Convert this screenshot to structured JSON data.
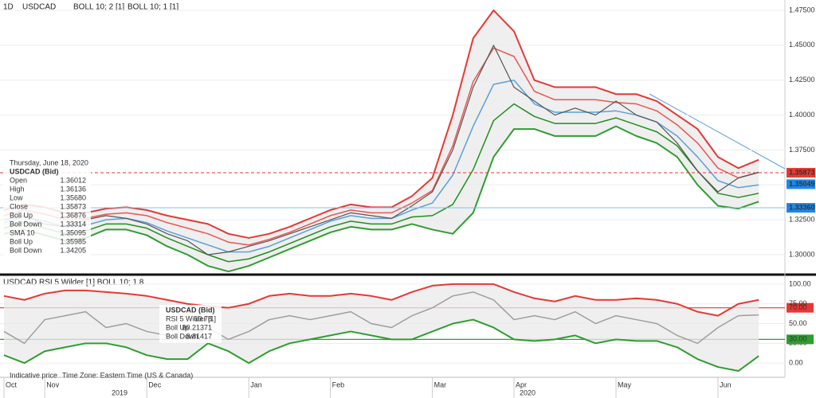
{
  "header": {
    "period": "1D",
    "symbol": "USDCAD",
    "indicators": [
      "BOLL 10; 2 [1]",
      "BOLL 10; 1 [1]"
    ]
  },
  "footer": {
    "note": "Indicative price",
    "timezone": "Time Zone: Eastern Time (US & Canada)",
    "years": [
      "2019",
      "2020"
    ]
  },
  "chart_data": [
    {
      "type": "line",
      "categories": [
        "Oct",
        null,
        "Nov",
        null,
        null,
        null,
        null,
        "Dec",
        null,
        null,
        null,
        null,
        "Jan",
        null,
        null,
        null,
        "Feb",
        null,
        null,
        null,
        null,
        "Mar",
        null,
        null,
        null,
        "Apr",
        null,
        null,
        null,
        null,
        "May",
        null,
        null,
        null,
        null,
        "Jun",
        null,
        null
      ],
      "ylim": [
        1.2886,
        1.4824
      ],
      "yticks": [
        {
          "value": 1.3,
          "label": "1.30000"
        },
        {
          "value": 1.325,
          "label": "1.32500"
        },
        {
          "value": 1.35,
          "label": "1.35000"
        },
        {
          "value": 1.375,
          "label": "1.37500"
        },
        {
          "value": 1.4,
          "label": "1.40000"
        },
        {
          "value": 1.425,
          "label": "1.42500"
        },
        {
          "value": 1.45,
          "label": "1.45000"
        },
        {
          "value": 1.475,
          "label": "1.47500"
        }
      ],
      "grid": true,
      "series": [
        {
          "color": "#e53935",
          "width": 2,
          "band": "up",
          "values": [
            1.332,
            1.336,
            1.334,
            1.33,
            1.33,
            1.333,
            1.334,
            1.332,
            1.328,
            1.325,
            1.322,
            1.315,
            1.312,
            1.315,
            1.32,
            1.326,
            1.332,
            1.336,
            1.334,
            1.334,
            1.342,
            1.355,
            1.4,
            1.455,
            1.475,
            1.46,
            1.425,
            1.42,
            1.42,
            1.42,
            1.415,
            1.415,
            1.41,
            1.4,
            1.39,
            1.37,
            1.362,
            1.368
          ]
        },
        {
          "color": "#2e9e2e",
          "width": 2,
          "band": "down",
          "values": [
            1.315,
            1.318,
            1.314,
            1.31,
            1.312,
            1.318,
            1.318,
            1.314,
            1.306,
            1.3,
            1.292,
            1.288,
            1.292,
            1.298,
            1.304,
            1.31,
            1.316,
            1.32,
            1.318,
            1.318,
            1.322,
            1.318,
            1.315,
            1.33,
            1.37,
            1.39,
            1.39,
            1.385,
            1.385,
            1.385,
            1.392,
            1.385,
            1.38,
            1.37,
            1.35,
            1.335,
            1.333,
            1.338
          ]
        },
        {
          "color": "#ef5350",
          "width": 1.5,
          "values": [
            1.328,
            1.332,
            1.329,
            1.325,
            1.326,
            1.329,
            1.33,
            1.328,
            1.323,
            1.319,
            1.315,
            1.309,
            1.307,
            1.311,
            1.316,
            1.322,
            1.328,
            1.332,
            1.33,
            1.33,
            1.337,
            1.346,
            1.378,
            1.424,
            1.448,
            1.442,
            1.417,
            1.411,
            1.411,
            1.411,
            1.409,
            1.408,
            1.403,
            1.393,
            1.38,
            1.362,
            1.355,
            1.359
          ]
        },
        {
          "color": "#1f8f1f",
          "width": 1.5,
          "values": [
            1.319,
            1.323,
            1.319,
            1.315,
            1.317,
            1.322,
            1.322,
            1.319,
            1.312,
            1.306,
            1.3,
            1.295,
            1.297,
            1.302,
            1.308,
            1.314,
            1.32,
            1.324,
            1.322,
            1.322,
            1.327,
            1.328,
            1.336,
            1.361,
            1.396,
            1.408,
            1.399,
            1.394,
            1.394,
            1.394,
            1.398,
            1.393,
            1.388,
            1.378,
            1.36,
            1.344,
            1.341,
            1.344
          ]
        },
        {
          "color": "#5aa0d8",
          "width": 1.5,
          "values": [
            1.323,
            1.327,
            1.324,
            1.32,
            1.321,
            1.325,
            1.326,
            1.323,
            1.317,
            1.312,
            1.307,
            1.302,
            1.302,
            1.306,
            1.312,
            1.318,
            1.324,
            1.328,
            1.326,
            1.326,
            1.332,
            1.337,
            1.357,
            1.392,
            1.422,
            1.425,
            1.408,
            1.402,
            1.402,
            1.402,
            1.403,
            1.4,
            1.395,
            1.385,
            1.37,
            1.353,
            1.348,
            1.35
          ]
        },
        {
          "color": "#555555",
          "width": 1.2,
          "values": [
            1.325,
            1.328,
            1.322,
            1.32,
            1.325,
            1.328,
            1.326,
            1.322,
            1.315,
            1.31,
            1.3,
            1.302,
            1.306,
            1.31,
            1.315,
            1.32,
            1.325,
            1.33,
            1.328,
            1.326,
            1.335,
            1.345,
            1.375,
            1.42,
            1.45,
            1.42,
            1.41,
            1.4,
            1.405,
            1.4,
            1.41,
            1.4,
            1.395,
            1.38,
            1.36,
            1.345,
            1.355,
            1.359
          ]
        }
      ],
      "markers": [
        {
          "value": 1.35873,
          "color": "#e53935",
          "line": "dashed"
        },
        {
          "value": 1.35049,
          "color": "#1e88e5",
          "line": "none"
        },
        {
          "value": 1.3336,
          "color": "#1e88e5",
          "line": "solid",
          "label": "1.33360"
        }
      ],
      "info_panel": {
        "date": "Thursday, June 18, 2020",
        "symbol": "USDCAD (Bid)",
        "rows": [
          {
            "label": "Open",
            "value": "1.36012",
            "color": "#333333"
          },
          {
            "label": "High",
            "value": "1.36136",
            "color": "#333333"
          },
          {
            "label": "Low",
            "value": "1.35680",
            "color": "#333333"
          },
          {
            "label": "Close",
            "value": "1.35873",
            "color": "#333333"
          },
          {
            "label": "Boll Up",
            "value": "1.36876",
            "color": "#e53935"
          },
          {
            "label": "Boll Down",
            "value": "1.33314",
            "color": "#2e9e2e"
          },
          {
            "label": "SMA 10",
            "value": "1.35095",
            "color": "#1e88e5"
          },
          {
            "label": "Boll Up",
            "value": "1.35985",
            "color": "#ef7a78"
          },
          {
            "label": "Boll Down",
            "value": "1.34205",
            "color": "#4caf50"
          }
        ]
      }
    },
    {
      "type": "line",
      "title": "USDCAD  RSI 5 Wilder [1]  BOLL 10; 1.8",
      "ylim": [
        -14,
        109
      ],
      "yticks": [
        {
          "value": 0,
          "label": "0.00"
        },
        {
          "value": 25,
          "label": "25.00"
        },
        {
          "value": 30,
          "label": "30.00"
        },
        {
          "value": 50,
          "label": "50.00"
        },
        {
          "value": 70,
          "label": "70.00"
        },
        {
          "value": 75,
          "label": "75.00"
        },
        {
          "value": 100,
          "label": "100.00"
        }
      ],
      "grid": true,
      "hlines": [
        {
          "value": 70,
          "color": "#e53935"
        },
        {
          "value": 30,
          "color": "#2e9e2e"
        }
      ],
      "series": [
        {
          "color": "#e53935",
          "width": 2,
          "band": "up",
          "values": [
            85,
            80,
            88,
            92,
            92,
            90,
            88,
            85,
            80,
            75,
            72,
            70,
            75,
            85,
            88,
            85,
            85,
            88,
            85,
            80,
            90,
            98,
            100,
            100,
            100,
            90,
            82,
            78,
            85,
            80,
            80,
            82,
            80,
            75,
            65,
            60,
            75,
            80
          ]
        },
        {
          "color": "#2e9e2e",
          "width": 2,
          "band": "down",
          "values": [
            10,
            0,
            15,
            20,
            25,
            25,
            20,
            10,
            5,
            5,
            25,
            15,
            0,
            15,
            25,
            30,
            35,
            40,
            35,
            30,
            30,
            40,
            50,
            55,
            45,
            30,
            28,
            30,
            35,
            25,
            30,
            28,
            28,
            20,
            5,
            -5,
            -10,
            9
          ]
        },
        {
          "color": "#9e9e9e",
          "width": 1.5,
          "values": [
            40,
            25,
            55,
            60,
            65,
            45,
            50,
            40,
            35,
            30,
            45,
            30,
            40,
            55,
            60,
            55,
            60,
            65,
            50,
            45,
            60,
            70,
            85,
            90,
            80,
            55,
            60,
            55,
            65,
            50,
            60,
            55,
            50,
            35,
            25,
            45,
            60,
            61
          ]
        }
      ],
      "info_panel": {
        "symbol": "USDCAD (Bid)",
        "rows": [
          {
            "label": "RSI 5 Wilder [1]",
            "value": "60.78",
            "color": "#888888"
          },
          {
            "label": "Boll Up",
            "value": "80.21371",
            "color": "#e53935"
          },
          {
            "label": "Boll Down",
            "value": "8.81417",
            "color": "#2e9e2e"
          }
        ]
      }
    }
  ]
}
